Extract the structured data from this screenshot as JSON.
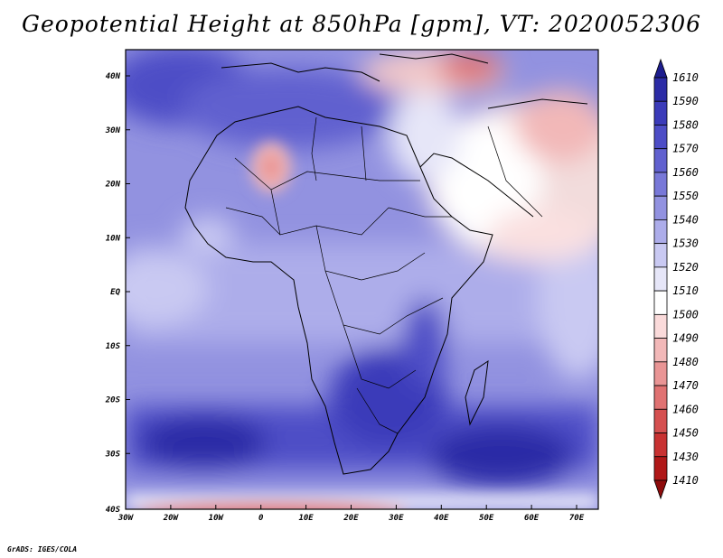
{
  "title": "Geopotential Height at 850hPa [gpm], VT: 2020052306",
  "credit": "GrADS: IGES/COLA",
  "map": {
    "y_labels": [
      "40N",
      "30N",
      "20N",
      "10N",
      "EQ",
      "10S",
      "20S",
      "30S",
      "40S"
    ],
    "x_labels": [
      "30W",
      "20W",
      "10W",
      "0",
      "10E",
      "20E",
      "30E",
      "40E",
      "50E",
      "60E",
      "70E"
    ]
  },
  "colorbar": {
    "levels": [
      "1610",
      "1590",
      "1580",
      "1570",
      "1560",
      "1550",
      "1540",
      "1530",
      "1520",
      "1510",
      "1500",
      "1490",
      "1480",
      "1470",
      "1460",
      "1450",
      "1430",
      "1410"
    ],
    "colors": [
      "#1d1d8e",
      "#2c2ca6",
      "#3b3bb9",
      "#4d4dc6",
      "#6161cf",
      "#7878d8",
      "#9292e0",
      "#adadea",
      "#c9c9f2",
      "#e6e6f8",
      "#ffffff",
      "#fadada",
      "#f2b8b8",
      "#e99595",
      "#e07272",
      "#d55050",
      "#c83232",
      "#b01818",
      "#8e0c0c"
    ]
  }
}
